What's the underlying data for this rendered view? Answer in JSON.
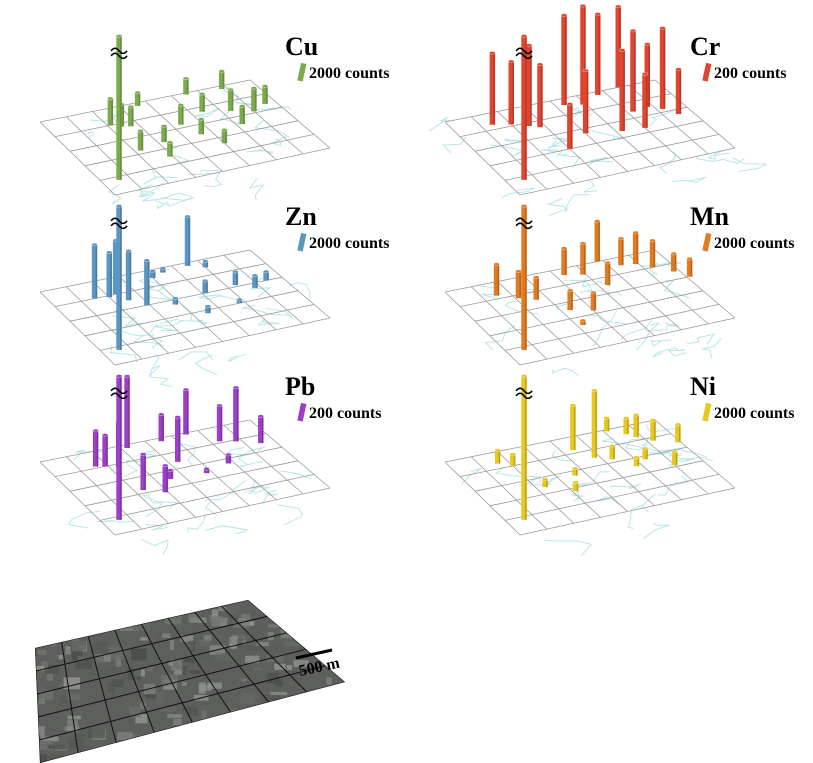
{
  "panels": [
    {
      "element": "Cu",
      "color": "#7cab4e",
      "scale": {
        "value": 2000,
        "label": "2000 counts"
      },
      "x": [
        0.6,
        2.1,
        2.4,
        2.7,
        3.6,
        5.5,
        6.8,
        4.3,
        5.4,
        6.3,
        7.0,
        7.6,
        3.2,
        2.2,
        4.6,
        6.2,
        5.0,
        2.9
      ],
      "y": [
        4.2,
        1.0,
        1.2,
        1.3,
        0.2,
        0.1,
        0.2,
        1.8,
        1.3,
        1.6,
        1.9,
        1.6,
        2.6,
        2.8,
        2.6,
        2.5,
        3.4,
        3.5
      ],
      "values": [
        16000,
        3000,
        2500,
        2200,
        1500,
        1800,
        2000,
        2200,
        2000,
        2400,
        2600,
        2000,
        1800,
        2200,
        1700,
        2000,
        1500,
        1600
      ]
    },
    {
      "element": "Cr",
      "color": "#e0452f",
      "scale": {
        "value": 200,
        "label": "200 counts"
      },
      "x": [
        0.6,
        1.4,
        2.0,
        2.5,
        2.8,
        4.3,
        4.9,
        5.7,
        6.6,
        6.2,
        6.8,
        7.2,
        4.0,
        5.2,
        6.0,
        3.0,
        7.5
      ],
      "y": [
        4.2,
        0.7,
        0.9,
        1.2,
        1.4,
        0.4,
        0.6,
        0.2,
        0.0,
        1.6,
        1.5,
        1.8,
        2.3,
        2.6,
        2.7,
        3.0,
        2.3
      ],
      "values": [
        1600,
        800,
        700,
        900,
        700,
        1000,
        1100,
        900,
        900,
        900,
        700,
        900,
        700,
        900,
        600,
        500,
        500
      ]
    },
    {
      "element": "Zn",
      "color": "#5b95c2",
      "scale": {
        "value": 2000,
        "label": "2000 counts"
      },
      "x": [
        0.6,
        1.5,
        2.0,
        2.3,
        2.5,
        2.9,
        4.0,
        4.5,
        5.5,
        6.0,
        3.8,
        5.1,
        6.3,
        6.8,
        7.4,
        4.5,
        5.8
      ],
      "y": [
        4.2,
        1.0,
        1.1,
        1.0,
        1.5,
        2.0,
        0.5,
        0.3,
        0.2,
        0.5,
        2.3,
        2.0,
        1.9,
        2.3,
        2.0,
        3.2,
        3.0
      ],
      "values": [
        16000,
        6000,
        5000,
        6000,
        5500,
        5000,
        800,
        500,
        5500,
        700,
        700,
        1400,
        1500,
        1400,
        1000,
        800,
        400
      ]
    },
    {
      "element": "Mn",
      "color": "#e07b22",
      "scale": {
        "value": 2000,
        "label": "2000 counts"
      },
      "x": [
        0.6,
        1.5,
        2.1,
        2.6,
        3.3,
        4.3,
        4.9,
        5.8,
        6.4,
        6.9,
        7.3,
        7.8,
        4.0,
        5.3,
        3.2,
        8.1
      ],
      "y": [
        4.2,
        0.8,
        1.2,
        1.5,
        2.5,
        0.4,
        0.6,
        0.0,
        0.5,
        0.6,
        1.0,
        1.5,
        2.8,
        1.5,
        3.5,
        2.0
      ],
      "values": [
        16000,
        3500,
        3000,
        2500,
        2200,
        3000,
        3500,
        4500,
        3000,
        3500,
        3000,
        2000,
        2000,
        2500,
        500,
        2000
      ]
    },
    {
      "element": "Pb",
      "color": "#9b3fc7",
      "scale": {
        "value": 200,
        "label": "200 counts"
      },
      "x": [
        0.6,
        1.6,
        1.9,
        2.3,
        3.2,
        4.5,
        5.5,
        6.3,
        6.8,
        7.5,
        4.3,
        3.5,
        2.3,
        2.9,
        5.8,
        4.8
      ],
      "y": [
        4.2,
        0.9,
        1.0,
        1.2,
        0.2,
        0.2,
        0.1,
        0.9,
        1.1,
        1.5,
        1.6,
        2.5,
        2.8,
        3.2,
        2.3,
        2.6
      ],
      "values": [
        1600,
        400,
        350,
        500,
        800,
        300,
        500,
        400,
        600,
        300,
        500,
        100,
        400,
        300,
        100,
        50
      ]
    },
    {
      "element": "Ni",
      "color": "#e6c81f",
      "scale": {
        "value": 2000,
        "label": "2000 counts"
      },
      "x": [
        0.6,
        1.6,
        2.0,
        3.1,
        3.6,
        4.4,
        4.8,
        5.3,
        6.1,
        6.6,
        6.8,
        7.2,
        5.8,
        6.3,
        7.9,
        7.0,
        2.3
      ],
      "y": [
        4.2,
        0.7,
        1.0,
        3.2,
        2.3,
        0.8,
        1.5,
        1.8,
        0.1,
        0.5,
        0.8,
        1.2,
        2.5,
        2.2,
        1.6,
        2.9,
        2.6
      ],
      "values": [
        16000,
        1500,
        1300,
        1000,
        800,
        5000,
        7500,
        1500,
        1500,
        1800,
        2500,
        2300,
        1000,
        1200,
        2000,
        1500,
        900
      ]
    }
  ],
  "aerial": {
    "scale_label": "500 m"
  }
}
